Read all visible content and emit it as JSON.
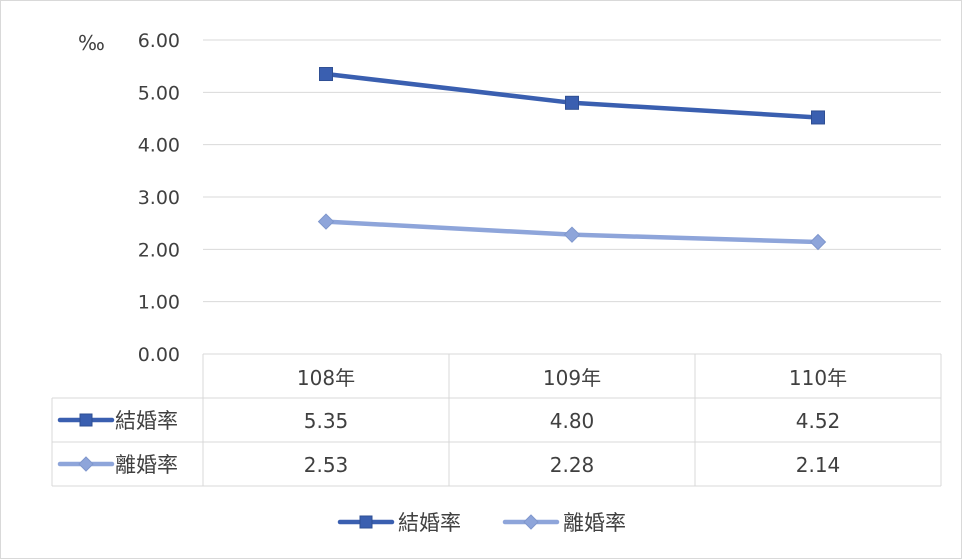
{
  "chart_data": {
    "type": "line",
    "ylabel": "‰",
    "categories": [
      "108年",
      "109年",
      "110年"
    ],
    "series": [
      {
        "name": "結婚率",
        "values": [
          5.35,
          4.8,
          4.52
        ],
        "color": "#3a5fb0",
        "marker": "square"
      },
      {
        "name": "離婚率",
        "values": [
          2.53,
          2.28,
          2.14
        ],
        "color": "#8ea5da",
        "marker": "diamond"
      }
    ],
    "ylim": [
      0,
      6
    ],
    "yticks": [
      "0.00",
      "1.00",
      "2.00",
      "3.00",
      "4.00",
      "5.00",
      "6.00"
    ],
    "grid": true,
    "data_table": true,
    "table_values": [
      [
        "5.35",
        "4.80",
        "4.52"
      ],
      [
        "2.53",
        "2.28",
        "2.14"
      ]
    ],
    "legend_position": "bottom"
  }
}
